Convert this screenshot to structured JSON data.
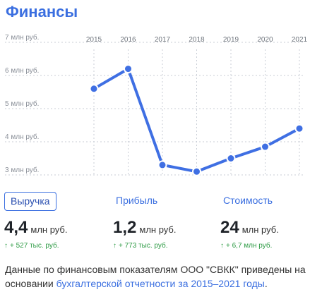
{
  "title": "Финансы",
  "chart_data": {
    "type": "line",
    "x": [
      "2015",
      "2016",
      "2017",
      "2018",
      "2019",
      "2020",
      "2021"
    ],
    "series": [
      {
        "values": [
          5.6,
          6.2,
          3.3,
          3.1,
          3.5,
          3.85,
          4.4
        ]
      }
    ],
    "y_ticks": [
      "7 млн руб.",
      "6 млн руб.",
      "5 млн руб.",
      "4 млн руб.",
      "3 млн руб."
    ],
    "y_tick_values": [
      7,
      6,
      5,
      4,
      3
    ],
    "ylim": [
      3,
      7
    ],
    "grid": true,
    "color": "#3f6fe3",
    "marker_color": "#3f6fe3"
  },
  "metrics": [
    {
      "label": "Выручка",
      "number": "4,4",
      "unit": "млн руб.",
      "delta": "+ 527 тыс. руб.",
      "active": true
    },
    {
      "label": "Прибыль",
      "number": "1,2",
      "unit": "млн руб.",
      "delta": "+ 773 тыс. руб.",
      "active": false
    },
    {
      "label": "Стоимость",
      "number": "24",
      "unit": "млн руб.",
      "delta": "+ 6,7 млн руб.",
      "active": false
    }
  ],
  "delta_arrow": "↑",
  "note": {
    "text_before": "Данные по финансовым показателям ООО \"СВКК\" приведены на основании ",
    "link_text": "бухгалтерской отчетности за 2015–2021 годы",
    "text_after": "."
  },
  "colors": {
    "accent": "#3b6fe0",
    "positive": "#2e9b45",
    "grid": "#c9ced6"
  }
}
